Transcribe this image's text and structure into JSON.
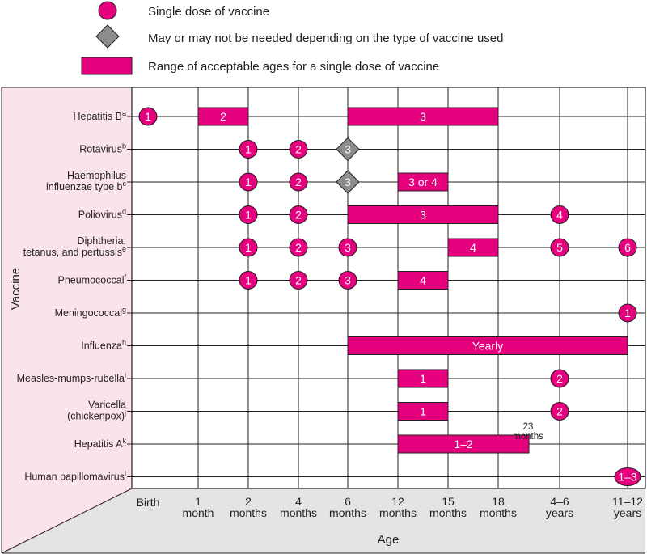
{
  "legend": [
    {
      "symbol": "circle",
      "label": "Single dose of vaccine"
    },
    {
      "symbol": "diamond",
      "label": "May or may not be needed depending on the type of vaccine used"
    },
    {
      "symbol": "bar",
      "label": "Range of acceptable ages for a single dose of vaccine"
    }
  ],
  "colors": {
    "dose": "#e5007e",
    "optional": "#8c8c8c",
    "left_panel": "#fbe3ea",
    "bottom_panel": "#e4e4e4",
    "grid": "#231f20"
  },
  "chart_data": {
    "type": "table",
    "xlabel": "Age",
    "ylabel": "Vaccine",
    "x_ticks": [
      {
        "line1": "Birth",
        "line2": ""
      },
      {
        "line1": "1",
        "line2": "month"
      },
      {
        "line1": "2",
        "line2": "months"
      },
      {
        "line1": "4",
        "line2": "months"
      },
      {
        "line1": "6",
        "line2": "months"
      },
      {
        "line1": "12",
        "line2": "months"
      },
      {
        "line1": "15",
        "line2": "months"
      },
      {
        "line1": "18",
        "line2": "months"
      },
      {
        "line1": "4–6",
        "line2": "years"
      },
      {
        "line1": "11–12",
        "line2": "years"
      }
    ],
    "vaccines": [
      {
        "name": [
          "Hepatitis B"
        ],
        "sup": "a",
        "marks": [
          {
            "type": "dose",
            "at": 0,
            "label": "1"
          },
          {
            "type": "range",
            "from": 1,
            "to": 2,
            "label": "2"
          },
          {
            "type": "range",
            "from": 4,
            "to": 7,
            "label": "3"
          }
        ]
      },
      {
        "name": [
          "Rotavirus"
        ],
        "sup": "b",
        "marks": [
          {
            "type": "dose",
            "at": 2,
            "label": "1"
          },
          {
            "type": "dose",
            "at": 3,
            "label": "2"
          },
          {
            "type": "optional",
            "at": 4,
            "label": "3"
          }
        ]
      },
      {
        "name": [
          "Haemophilus",
          "influenzae type b"
        ],
        "sup": "c",
        "marks": [
          {
            "type": "dose",
            "at": 2,
            "label": "1"
          },
          {
            "type": "dose",
            "at": 3,
            "label": "2"
          },
          {
            "type": "optional",
            "at": 4,
            "label": "3"
          },
          {
            "type": "range",
            "from": 5,
            "to": 6,
            "label": "3 or 4"
          }
        ]
      },
      {
        "name": [
          "Poliovirus"
        ],
        "sup": "d",
        "marks": [
          {
            "type": "dose",
            "at": 2,
            "label": "1"
          },
          {
            "type": "dose",
            "at": 3,
            "label": "2"
          },
          {
            "type": "range",
            "from": 4,
            "to": 7,
            "label": "3"
          },
          {
            "type": "dose",
            "at": 8,
            "label": "4"
          }
        ]
      },
      {
        "name": [
          "Diphtheria,",
          "tetanus, and pertussis"
        ],
        "sup": "e",
        "marks": [
          {
            "type": "dose",
            "at": 2,
            "label": "1"
          },
          {
            "type": "dose",
            "at": 3,
            "label": "2"
          },
          {
            "type": "dose",
            "at": 4,
            "label": "3"
          },
          {
            "type": "range",
            "from": 6,
            "to": 7,
            "label": "4"
          },
          {
            "type": "dose",
            "at": 8,
            "label": "5"
          },
          {
            "type": "dose",
            "at": 9,
            "label": "6"
          }
        ]
      },
      {
        "name": [
          "Pneumococcal"
        ],
        "sup": "f",
        "marks": [
          {
            "type": "dose",
            "at": 2,
            "label": "1"
          },
          {
            "type": "dose",
            "at": 3,
            "label": "2"
          },
          {
            "type": "dose",
            "at": 4,
            "label": "3"
          },
          {
            "type": "range",
            "from": 5,
            "to": 6,
            "label": "4"
          }
        ]
      },
      {
        "name": [
          "Meningococcal"
        ],
        "sup": "g",
        "marks": [
          {
            "type": "dose",
            "at": 9,
            "label": "1"
          }
        ]
      },
      {
        "name": [
          "Influenza"
        ],
        "sup": "h",
        "marks": [
          {
            "type": "range",
            "from": 4,
            "to": 9,
            "label": "Yearly"
          }
        ]
      },
      {
        "name": [
          "Measles-mumps-rubella"
        ],
        "sup": "i",
        "marks": [
          {
            "type": "range",
            "from": 5,
            "to": 6,
            "label": "1"
          },
          {
            "type": "dose",
            "at": 8,
            "label": "2"
          }
        ]
      },
      {
        "name": [
          "Varicella",
          "(chickenpox)"
        ],
        "sup": "j",
        "marks": [
          {
            "type": "range",
            "from": 5,
            "to": 6,
            "label": "1"
          },
          {
            "type": "dose",
            "at": 8,
            "label": "2"
          }
        ]
      },
      {
        "name": [
          "Hepatitis A"
        ],
        "sup": "k",
        "marks": [
          {
            "type": "range",
            "from": 5,
            "to": 7.5,
            "label": "1–2"
          }
        ]
      },
      {
        "name": [
          "Human papillomavirus"
        ],
        "sup": "l",
        "marks": [
          {
            "type": "dose",
            "at": 9,
            "label": "1–3"
          }
        ]
      }
    ],
    "annotations": [
      {
        "lines": [
          "23",
          "months"
        ],
        "at": 7.5,
        "row": 10
      }
    ]
  }
}
